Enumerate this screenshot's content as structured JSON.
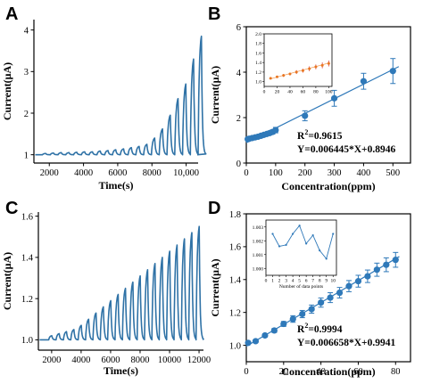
{
  "chart_data": [
    {
      "panel": "A",
      "type": "line",
      "xlabel": "Time(s)",
      "ylabel": "Current(μA)",
      "xlim": [
        1100,
        10700
      ],
      "ylim": [
        0.8,
        4.25
      ],
      "xticks": [
        2000,
        4000,
        6000,
        8000,
        10000
      ],
      "xtick_labels": [
        "2000",
        "4000",
        "6000",
        "8000",
        "10,000"
      ],
      "yticks": [
        1,
        2,
        3,
        4
      ],
      "ytick_labels": [
        "1",
        "2",
        "3",
        "4"
      ],
      "line_color": "#2f72a6",
      "baseline": 1.0,
      "pulse_start_time": 1600,
      "pulse_period": 455,
      "peaks": [
        1.03,
        1.04,
        1.05,
        1.05,
        1.06,
        1.07,
        1.07,
        1.09,
        1.1,
        1.12,
        1.14,
        1.17,
        1.2,
        1.25,
        1.4,
        1.62,
        1.95,
        2.35,
        2.7,
        3.3,
        3.85
      ]
    },
    {
      "panel": "B",
      "type": "scatter",
      "xlabel": "Concentration(ppm)",
      "ylabel": "Current(μA)",
      "xlim": [
        0,
        560
      ],
      "ylim": [
        0,
        6
      ],
      "xticks": [
        0,
        100,
        200,
        300,
        400,
        500
      ],
      "yticks": [
        0,
        2,
        4,
        6
      ],
      "point_color": "#2f79b9",
      "fit": {
        "slope": 0.006445,
        "intercept": 0.8946,
        "x_range": [
          0,
          520
        ]
      },
      "annotation_r2_prefix": "R",
      "annotation_r2_sup": "2",
      "annotation_r2_value": "=0.9615",
      "annotation_eq": "Y=0.006445*X+0.8946",
      "points": [
        {
          "x": 5,
          "y": 1.05,
          "err": 0.03
        },
        {
          "x": 10,
          "y": 1.07,
          "err": 0.03
        },
        {
          "x": 20,
          "y": 1.1,
          "err": 0.04
        },
        {
          "x": 30,
          "y": 1.13,
          "err": 0.04
        },
        {
          "x": 40,
          "y": 1.16,
          "err": 0.05
        },
        {
          "x": 50,
          "y": 1.2,
          "err": 0.05
        },
        {
          "x": 60,
          "y": 1.24,
          "err": 0.06
        },
        {
          "x": 70,
          "y": 1.28,
          "err": 0.07
        },
        {
          "x": 80,
          "y": 1.32,
          "err": 0.08
        },
        {
          "x": 90,
          "y": 1.37,
          "err": 0.09
        },
        {
          "x": 100,
          "y": 1.45,
          "err": 0.12
        },
        {
          "x": 200,
          "y": 2.08,
          "err": 0.22
        },
        {
          "x": 300,
          "y": 2.85,
          "err": 0.35
        },
        {
          "x": 400,
          "y": 3.6,
          "err": 0.35
        },
        {
          "x": 500,
          "y": 4.05,
          "err": 0.55
        }
      ],
      "inset": {
        "type": "scatter",
        "xlim": [
          0,
          105
        ],
        "ylim": [
          0.9,
          2.0
        ],
        "xticks": [
          0,
          20,
          40,
          60,
          80,
          100
        ],
        "yticks": [
          1.0,
          1.2,
          1.4,
          1.6,
          1.8,
          2.0
        ],
        "ytick_labels": [
          "1.0",
          "1.2",
          "1.4",
          "1.6",
          "1.8",
          "2.0"
        ],
        "point_color": "#e87722",
        "error_color": "#d62728",
        "fit_color": "#f4a261",
        "points": [
          {
            "x": 10,
            "y": 1.07,
            "err": 0.02
          },
          {
            "x": 20,
            "y": 1.1,
            "err": 0.02
          },
          {
            "x": 30,
            "y": 1.13,
            "err": 0.03
          },
          {
            "x": 40,
            "y": 1.16,
            "err": 0.03
          },
          {
            "x": 50,
            "y": 1.2,
            "err": 0.04
          },
          {
            "x": 60,
            "y": 1.23,
            "err": 0.04
          },
          {
            "x": 70,
            "y": 1.27,
            "err": 0.05
          },
          {
            "x": 80,
            "y": 1.31,
            "err": 0.05
          },
          {
            "x": 90,
            "y": 1.34,
            "err": 0.06
          },
          {
            "x": 100,
            "y": 1.38,
            "err": 0.06
          }
        ]
      }
    },
    {
      "panel": "C",
      "type": "line",
      "xlabel": "Time(s)",
      "ylabel": "Current(μA)",
      "xlim": [
        1100,
        12300
      ],
      "ylim": [
        0.95,
        1.62
      ],
      "xticks": [
        2000,
        4000,
        6000,
        8000,
        10000,
        12000
      ],
      "xtick_labels": [
        "2000",
        "4000",
        "6000",
        "8000",
        "10000",
        "12000"
      ],
      "yticks": [
        1.0,
        1.2,
        1.4,
        1.6
      ],
      "ytick_labels": [
        "1.0",
        "1.2",
        "1.4",
        "1.6"
      ],
      "line_color": "#2f72a6",
      "baseline": 1.0,
      "pulse_start_time": 1800,
      "pulse_period": 500,
      "peaks": [
        1.02,
        1.03,
        1.04,
        1.05,
        1.07,
        1.1,
        1.13,
        1.16,
        1.19,
        1.22,
        1.25,
        1.28,
        1.31,
        1.34,
        1.37,
        1.4,
        1.43,
        1.46,
        1.49,
        1.52,
        1.55
      ]
    },
    {
      "panel": "D",
      "type": "scatter",
      "xlabel": "Concentration(ppm)",
      "ylabel": "Current(μA)",
      "xlim": [
        0,
        88
      ],
      "ylim": [
        0.9,
        1.8
      ],
      "xticks": [
        0,
        20,
        40,
        60,
        80
      ],
      "yticks": [
        1.0,
        1.2,
        1.4,
        1.6,
        1.8
      ],
      "ytick_labels": [
        "1.0",
        "1.2",
        "1.4",
        "1.6",
        "1.8"
      ],
      "point_color": "#2f79b9",
      "fit": {
        "slope": 0.006658,
        "intercept": 0.9941,
        "x_range": [
          0,
          82
        ]
      },
      "annotation_r2_prefix": "R",
      "annotation_r2_sup": "2",
      "annotation_r2_value": "=0.9994",
      "annotation_eq": "Y=0.006658*X+0.9941",
      "points": [
        {
          "x": 1,
          "y": 1.015,
          "err": 0.005
        },
        {
          "x": 5,
          "y": 1.025,
          "err": 0.008
        },
        {
          "x": 10,
          "y": 1.06,
          "err": 0.01
        },
        {
          "x": 15,
          "y": 1.09,
          "err": 0.012
        },
        {
          "x": 20,
          "y": 1.13,
          "err": 0.015
        },
        {
          "x": 25,
          "y": 1.16,
          "err": 0.02
        },
        {
          "x": 30,
          "y": 1.19,
          "err": 0.022
        },
        {
          "x": 35,
          "y": 1.22,
          "err": 0.025
        },
        {
          "x": 40,
          "y": 1.26,
          "err": 0.028
        },
        {
          "x": 45,
          "y": 1.29,
          "err": 0.03
        },
        {
          "x": 50,
          "y": 1.32,
          "err": 0.032
        },
        {
          "x": 55,
          "y": 1.36,
          "err": 0.034
        },
        {
          "x": 60,
          "y": 1.39,
          "err": 0.036
        },
        {
          "x": 65,
          "y": 1.42,
          "err": 0.038
        },
        {
          "x": 70,
          "y": 1.46,
          "err": 0.04
        },
        {
          "x": 75,
          "y": 1.49,
          "err": 0.042
        },
        {
          "x": 80,
          "y": 1.52,
          "err": 0.045
        }
      ],
      "inset": {
        "type": "line",
        "xlabel": "Number of data points",
        "xlim": [
          0,
          10.5
        ],
        "ylim": [
          0.9995,
          1.0035
        ],
        "xticks": [
          0,
          1,
          2,
          3,
          4,
          5,
          6,
          7,
          8,
          9,
          10
        ],
        "yticks": [
          1.0,
          1.001,
          1.002,
          1.003
        ],
        "ytick_labels": [
          "1.000",
          "1.001",
          "1.002",
          "1.003"
        ],
        "line_color": "#2f79b9",
        "x": [
          1,
          2,
          3,
          4,
          5,
          6,
          7,
          8,
          9,
          10
        ],
        "y": [
          1.0025,
          1.0016,
          1.0017,
          1.0025,
          1.0031,
          1.0018,
          1.0024,
          1.0013,
          1.0007,
          1.0025
        ]
      }
    }
  ]
}
